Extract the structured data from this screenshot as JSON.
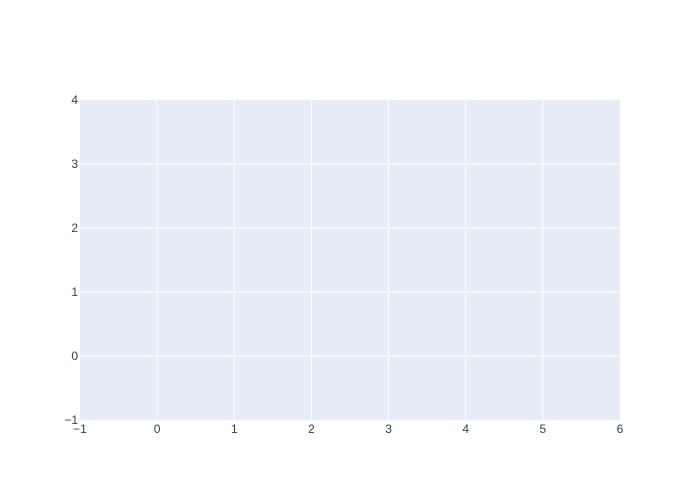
{
  "chart_data": {
    "type": "scatter",
    "title": "",
    "xlabel": "",
    "ylabel": "",
    "xlim": [
      -1,
      6
    ],
    "ylim": [
      -1,
      4
    ],
    "x_ticks": [
      -1,
      0,
      1,
      2,
      3,
      4,
      5,
      6
    ],
    "y_ticks": [
      -1,
      0,
      1,
      2,
      3,
      4
    ],
    "x_tick_labels": [
      "−1",
      "0",
      "1",
      "2",
      "3",
      "4",
      "5",
      "6"
    ],
    "y_tick_labels": [
      "−1",
      "0",
      "1",
      "2",
      "3",
      "4"
    ],
    "grid": true,
    "series": []
  },
  "colors": {
    "plot_background": "#e5ecf6",
    "grid": "#ffffff",
    "tick_text": "#2a3f5f",
    "page_background": "#ffffff"
  }
}
